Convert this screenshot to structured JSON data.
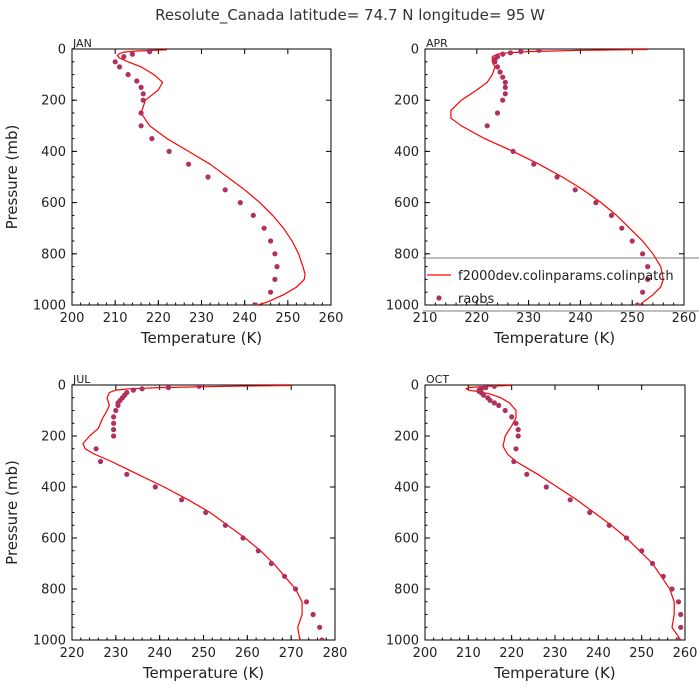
{
  "colors": {
    "model": "#ff0000",
    "obs": "#b03060",
    "axes": "#000000"
  },
  "figure": {
    "title": "Resolute_Canada   latitude= 74.7 N longitude= 95 W"
  },
  "legend": {
    "items": [
      {
        "label": "f2000dev.colinparams.colinpatch",
        "style": "line"
      },
      {
        "label": "raobs",
        "style": "marker"
      }
    ]
  },
  "chart_data": [
    {
      "type": "line",
      "panel": "JAN",
      "xlabel": "Temperature (K)",
      "ylabel": "Pressure (mb)",
      "xlim": [
        200,
        260
      ],
      "ylim": [
        1000,
        0
      ],
      "xticks": [
        200,
        210,
        220,
        230,
        240,
        250,
        260
      ],
      "yticks": [
        0,
        200,
        400,
        600,
        800,
        1000
      ],
      "series": [
        {
          "name": "f2000dev.colinparams.colinpatch",
          "kind": "line",
          "p": [
            3,
            8,
            12,
            18,
            25,
            35,
            50,
            70,
            100,
            130,
            160,
            200,
            250,
            300,
            350,
            400,
            450,
            500,
            550,
            600,
            650,
            700,
            750,
            800,
            850,
            880,
            900,
            930,
            960,
            990,
            1000
          ],
          "t": [
            222,
            215,
            212,
            211,
            210.5,
            211,
            213,
            216,
            219,
            221,
            220,
            217,
            216,
            218,
            222,
            227,
            232,
            236,
            240,
            243.5,
            246.5,
            249,
            251,
            252.5,
            253.5,
            254,
            253.8,
            252,
            249,
            245,
            243
          ]
        },
        {
          "name": "raobs",
          "kind": "points",
          "p": [
            10,
            20,
            30,
            50,
            70,
            100,
            125,
            150,
            175,
            200,
            250,
            300,
            350,
            400,
            450,
            500,
            550,
            600,
            650,
            700,
            750,
            800,
            850,
            900,
            950,
            1000
          ],
          "t": [
            218,
            214,
            212,
            210,
            211,
            213,
            215,
            216,
            216.5,
            216.5,
            216,
            216,
            218.5,
            222.5,
            227,
            231.5,
            235.5,
            239,
            242,
            244.5,
            246,
            247,
            247.5,
            247,
            246,
            242.5
          ]
        }
      ]
    },
    {
      "type": "line",
      "panel": "APR",
      "xlabel": "Temperature (K)",
      "ylabel": "",
      "xlim": [
        210,
        260
      ],
      "ylim": [
        1000,
        0
      ],
      "xticks": [
        210,
        220,
        230,
        240,
        250,
        260
      ],
      "yticks": [
        0,
        200,
        400,
        600,
        800,
        1000
      ],
      "series": [
        {
          "name": "f2000dev.colinparams.colinpatch",
          "kind": "line",
          "p": [
            2,
            5,
            10,
            15,
            20,
            30,
            50,
            70,
            100,
            130,
            160,
            200,
            240,
            270,
            300,
            350,
            400,
            450,
            500,
            550,
            600,
            650,
            700,
            750,
            800,
            850,
            900,
            930,
            960,
            990,
            1000
          ],
          "t": [
            253,
            240,
            230,
            226,
            224,
            223,
            223,
            223.5,
            223,
            222,
            220,
            217,
            215,
            215,
            217,
            221.5,
            227,
            232,
            236.5,
            240.5,
            244,
            247,
            249.5,
            252,
            254,
            255.5,
            256,
            255.5,
            254,
            252,
            251.5
          ]
        },
        {
          "name": "raobs",
          "kind": "points",
          "p": [
            5,
            10,
            15,
            20,
            30,
            40,
            50,
            70,
            90,
            110,
            130,
            150,
            175,
            200,
            250,
            300,
            400,
            450,
            500,
            550,
            600,
            650,
            700,
            750,
            800,
            850,
            900,
            950,
            1000
          ],
          "t": [
            232,
            228.5,
            226.5,
            225,
            224,
            223.5,
            223.5,
            224,
            224.5,
            225,
            225.5,
            225.5,
            225.5,
            225,
            224,
            222,
            227,
            231,
            235.5,
            239,
            243,
            246,
            248,
            250,
            252,
            253,
            253,
            252,
            251
          ]
        }
      ]
    },
    {
      "type": "line",
      "panel": "JUL",
      "xlabel": "Temperature (K)",
      "ylabel": "Pressure (mb)",
      "xlim": [
        220,
        280
      ],
      "ylim": [
        1000,
        0
      ],
      "xticks": [
        220,
        230,
        240,
        250,
        260,
        270,
        280
      ],
      "yticks": [
        0,
        200,
        400,
        600,
        800,
        1000
      ],
      "series": [
        {
          "name": "f2000dev.colinparams.colinpatch",
          "kind": "line",
          "p": [
            2,
            5,
            10,
            15,
            20,
            30,
            50,
            80,
            100,
            130,
            170,
            200,
            230,
            250,
            270,
            300,
            350,
            400,
            450,
            500,
            550,
            600,
            650,
            700,
            750,
            800,
            850,
            900,
            950,
            1000
          ],
          "t": [
            270,
            255,
            240,
            233,
            230,
            228.5,
            228,
            228.5,
            228,
            227,
            226,
            224,
            222.5,
            223,
            225,
            229,
            235,
            241,
            246.5,
            251.5,
            255.5,
            259.5,
            263,
            266,
            268.5,
            271,
            272.5,
            272.5,
            271.5,
            272
          ]
        },
        {
          "name": "raobs",
          "kind": "points",
          "p": [
            5,
            10,
            15,
            20,
            30,
            40,
            50,
            60,
            70,
            80,
            100,
            125,
            150,
            175,
            200,
            250,
            300,
            350,
            400,
            450,
            500,
            550,
            600,
            650,
            700,
            750,
            800,
            850,
            900,
            950,
            1000
          ],
          "t": [
            249,
            242,
            236,
            234,
            232.5,
            232,
            231.5,
            231,
            230.5,
            230.5,
            230,
            229.5,
            229.5,
            229.5,
            229.5,
            225.5,
            226.5,
            232.5,
            239,
            245,
            250.5,
            255,
            259,
            262.5,
            265.5,
            268.5,
            271,
            273.5,
            275,
            276.5,
            277
          ]
        }
      ]
    },
    {
      "type": "line",
      "panel": "OCT",
      "xlabel": "Temperature (K)",
      "ylabel": "",
      "xlim": [
        200,
        260
      ],
      "ylim": [
        1000,
        0
      ],
      "xticks": [
        200,
        210,
        220,
        230,
        240,
        250,
        260
      ],
      "yticks": [
        0,
        200,
        400,
        600,
        800,
        1000
      ],
      "series": [
        {
          "name": "f2000dev.colinparams.colinpatch",
          "kind": "line",
          "p": [
            2,
            5,
            10,
            15,
            20,
            25,
            35,
            50,
            70,
            100,
            130,
            160,
            200,
            240,
            270,
            300,
            350,
            400,
            450,
            500,
            550,
            600,
            650,
            700,
            750,
            800,
            850,
            900,
            950,
            1000
          ],
          "t": [
            220,
            214,
            210,
            209.5,
            210,
            212,
            215,
            217.5,
            219.5,
            221,
            221,
            220,
            218.5,
            218,
            219,
            221,
            226,
            230.5,
            235,
            239,
            243,
            246.5,
            249.5,
            252.5,
            254.5,
            256.5,
            257.5,
            257.5,
            257,
            259
          ]
        },
        {
          "name": "raobs",
          "kind": "points",
          "p": [
            5,
            10,
            15,
            20,
            25,
            30,
            40,
            50,
            60,
            70,
            80,
            100,
            125,
            150,
            175,
            200,
            250,
            300,
            350,
            400,
            450,
            500,
            550,
            600,
            650,
            700,
            750,
            800,
            850,
            900,
            950,
            1000
          ],
          "t": [
            216,
            214,
            213,
            212.5,
            212.5,
            213,
            213.5,
            214.5,
            215,
            216,
            217,
            218.5,
            220,
            221,
            221.5,
            221.5,
            221,
            220.5,
            223.5,
            228,
            233.5,
            238,
            242.5,
            246.5,
            250,
            252.5,
            255,
            257,
            258.5,
            259,
            259,
            258.5
          ]
        }
      ]
    }
  ]
}
